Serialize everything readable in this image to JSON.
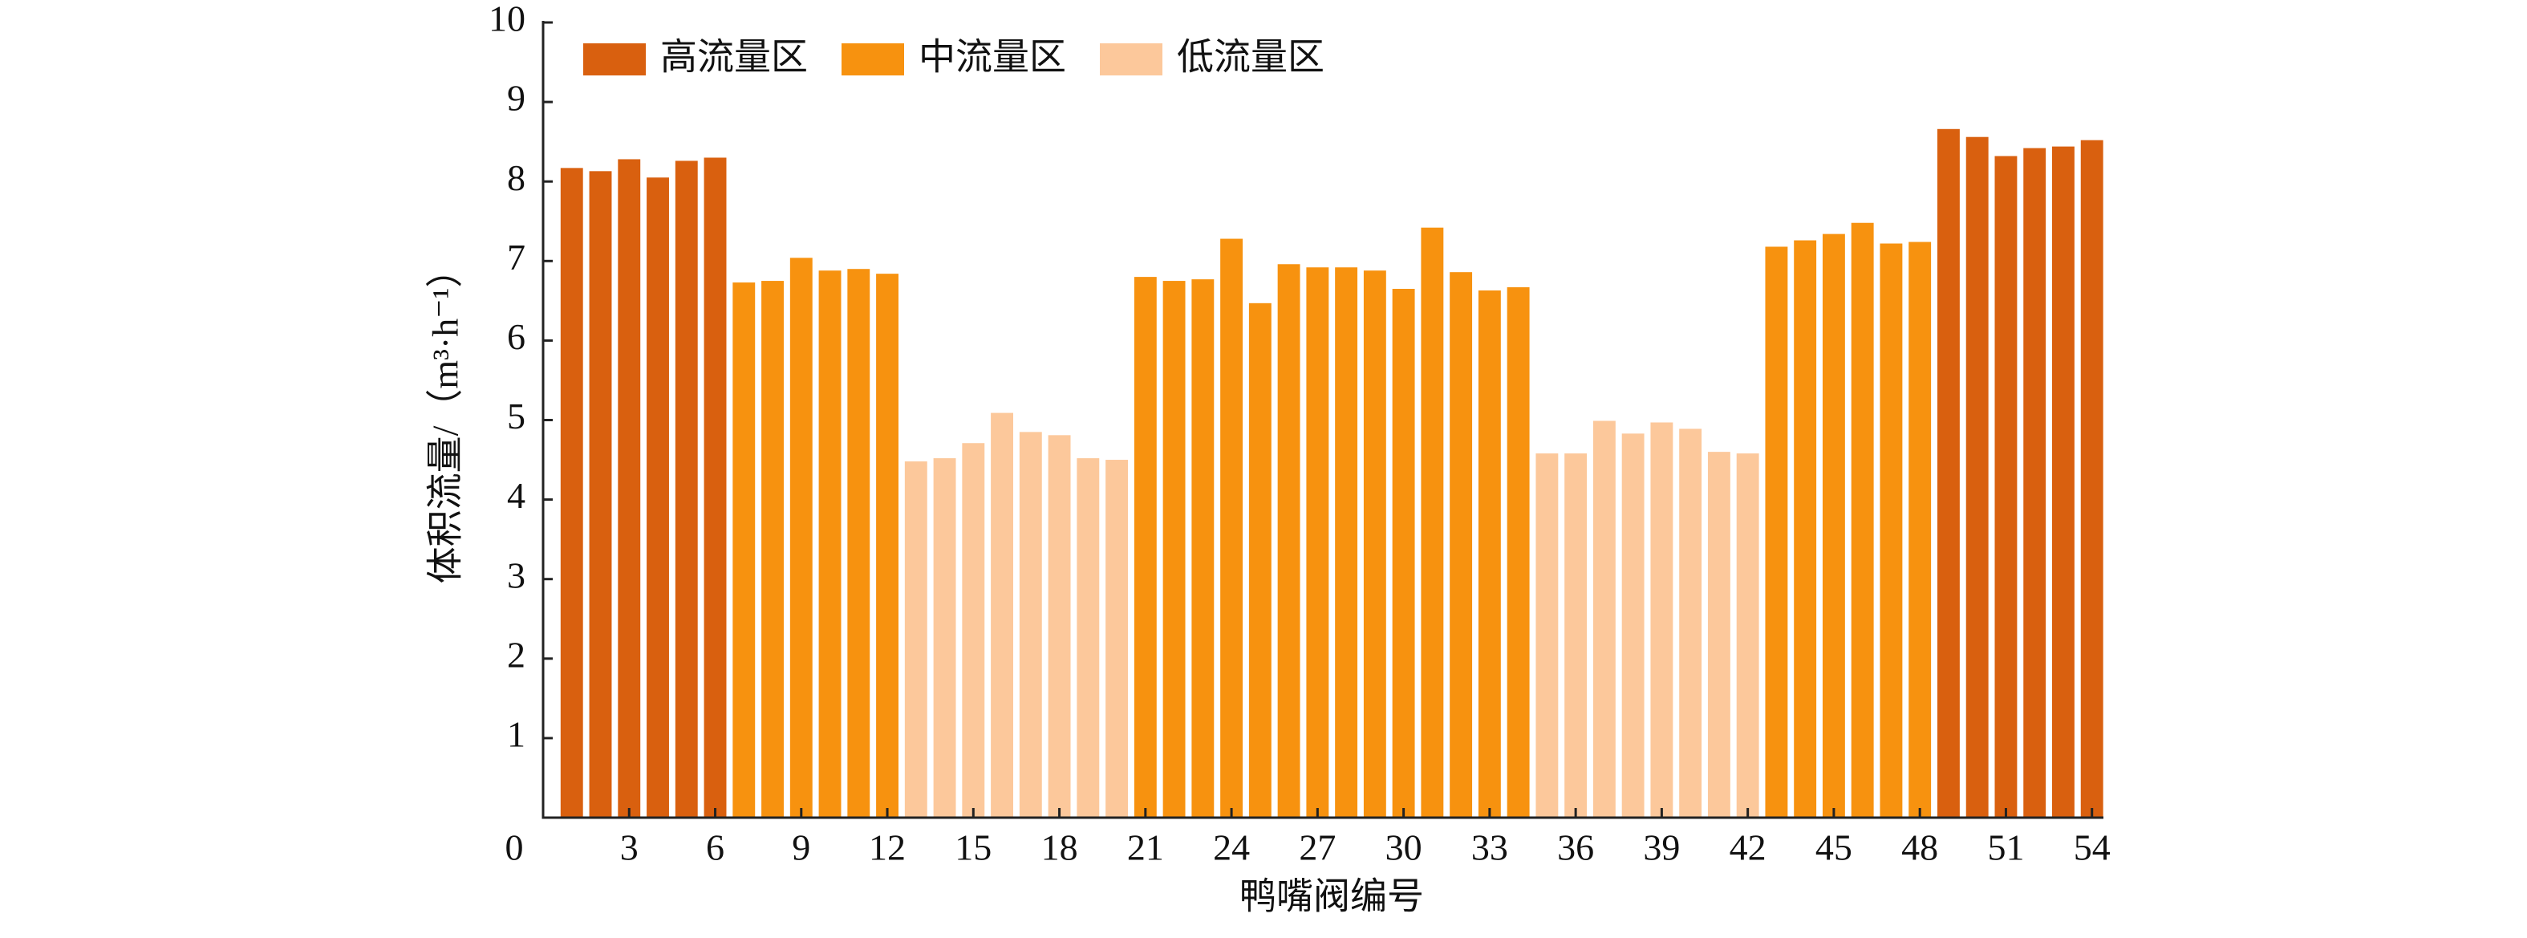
{
  "chart_data": {
    "type": "bar",
    "x_label": "鸭嘴阀编号",
    "y_label": "体积流量/（m³·h⁻¹）",
    "x": [
      1,
      2,
      3,
      4,
      5,
      6,
      7,
      8,
      9,
      10,
      11,
      12,
      13,
      14,
      15,
      16,
      17,
      18,
      19,
      20,
      21,
      22,
      23,
      24,
      25,
      26,
      27,
      28,
      29,
      30,
      31,
      32,
      33,
      34,
      35,
      36,
      37,
      38,
      39,
      40,
      41,
      42,
      43,
      44,
      45,
      46,
      47,
      48,
      49,
      50,
      51,
      52,
      53,
      54
    ],
    "series": [
      {
        "name": "高流量区",
        "color": "#d9600f",
        "values": [
          8.17,
          8.13,
          8.28,
          8.05,
          8.26,
          8.3,
          null,
          null,
          null,
          null,
          null,
          null,
          null,
          null,
          null,
          null,
          null,
          null,
          null,
          null,
          null,
          null,
          null,
          null,
          null,
          null,
          null,
          null,
          null,
          null,
          null,
          null,
          null,
          null,
          null,
          null,
          null,
          null,
          null,
          null,
          null,
          null,
          null,
          null,
          null,
          null,
          null,
          null,
          8.66,
          8.56,
          8.32,
          8.42,
          8.44,
          8.52
        ]
      },
      {
        "name": "中流量区",
        "color": "#f7920f",
        "values": [
          null,
          null,
          null,
          null,
          null,
          null,
          6.73,
          6.75,
          7.04,
          6.88,
          6.9,
          6.84,
          null,
          null,
          null,
          null,
          null,
          null,
          null,
          null,
          6.8,
          6.75,
          6.77,
          7.28,
          6.47,
          6.96,
          6.92,
          6.92,
          6.88,
          6.65,
          7.42,
          6.86,
          6.63,
          6.67,
          null,
          null,
          null,
          null,
          null,
          null,
          null,
          null,
          7.18,
          7.26,
          7.34,
          7.48,
          7.22,
          7.24,
          null,
          null,
          null,
          null,
          null,
          null
        ]
      },
      {
        "name": "低流量区",
        "color": "#fcc89b",
        "values": [
          null,
          null,
          null,
          null,
          null,
          null,
          null,
          null,
          null,
          null,
          null,
          null,
          4.48,
          4.52,
          4.71,
          5.09,
          4.85,
          4.81,
          4.52,
          4.5,
          null,
          null,
          null,
          null,
          null,
          null,
          null,
          null,
          null,
          null,
          null,
          null,
          null,
          null,
          4.58,
          4.58,
          4.99,
          4.83,
          4.97,
          4.89,
          4.6,
          4.58,
          null,
          null,
          null,
          null,
          null,
          null,
          null,
          null,
          null,
          null,
          null,
          null
        ]
      }
    ],
    "xlim": [
      0,
      54.4
    ],
    "xticks": [
      0,
      3,
      6,
      9,
      12,
      15,
      18,
      21,
      24,
      27,
      30,
      33,
      36,
      39,
      42,
      45,
      48,
      51,
      54
    ],
    "ylim": [
      0,
      10
    ],
    "yticks": [
      1,
      2,
      3,
      4,
      5,
      6,
      7,
      8,
      9,
      10
    ],
    "legend": "upper left"
  }
}
